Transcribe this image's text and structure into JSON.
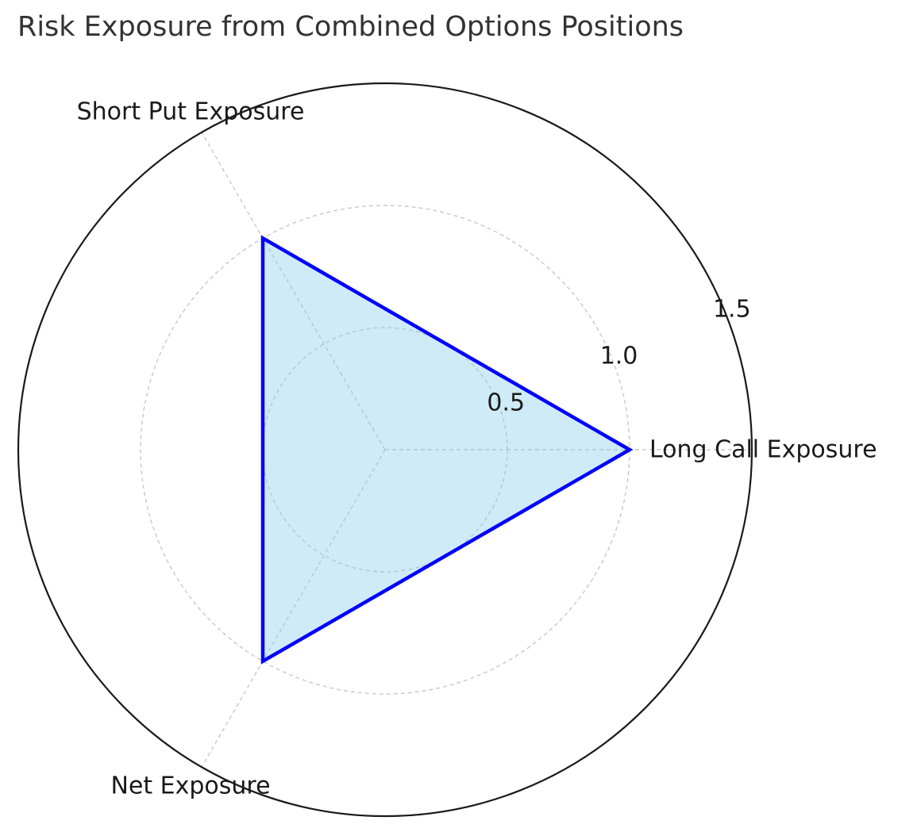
{
  "chart_data": {
    "type": "radar",
    "title": "Risk Exposure from Combined Options Positions",
    "categories": [
      "Long Call Exposure",
      "Short Put Exposure",
      "Net Exposure"
    ],
    "series": [
      {
        "values": [
          1.0,
          1.0,
          1.0
        ],
        "line_color": "#0000ff",
        "fill_color": "#87ceeb"
      }
    ],
    "rlim": [
      0,
      1.5
    ],
    "rticks": [
      0.5,
      1.0,
      1.5
    ],
    "rtick_labels": [
      "0.5",
      "1.0",
      "1.5"
    ],
    "grid": true,
    "gridline_color": "#c8c8c8",
    "outline_color": "#1a1a1a"
  }
}
